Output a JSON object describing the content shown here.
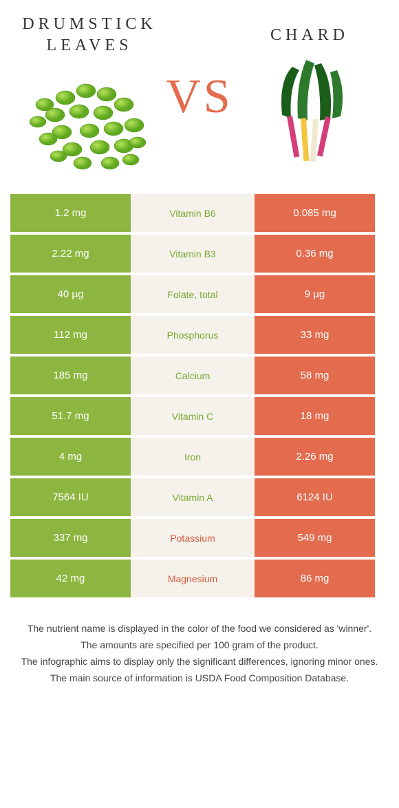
{
  "header": {
    "food1_title": "Drumstick leaves",
    "food2_title": "Chard",
    "vs": "VS"
  },
  "colors": {
    "green": "#8cb63f",
    "orange": "#e36b4e"
  },
  "rows": [
    {
      "left": "1.2 mg",
      "nutrient": "Vitamin B6",
      "right": "0.085 mg",
      "winner": "green"
    },
    {
      "left": "2.22 mg",
      "nutrient": "Vitamin B3",
      "right": "0.36 mg",
      "winner": "green"
    },
    {
      "left": "40 µg",
      "nutrient": "Folate, total",
      "right": "9 µg",
      "winner": "green"
    },
    {
      "left": "112 mg",
      "nutrient": "Phosphorus",
      "right": "33 mg",
      "winner": "green"
    },
    {
      "left": "185 mg",
      "nutrient": "Calcium",
      "right": "58 mg",
      "winner": "green"
    },
    {
      "left": "51.7 mg",
      "nutrient": "Vitamin C",
      "right": "18 mg",
      "winner": "green"
    },
    {
      "left": "4 mg",
      "nutrient": "Iron",
      "right": "2.26 mg",
      "winner": "green"
    },
    {
      "left": "7564 IU",
      "nutrient": "Vitamin A",
      "right": "6124 IU",
      "winner": "green"
    },
    {
      "left": "337 mg",
      "nutrient": "Potassium",
      "right": "549 mg",
      "winner": "orange"
    },
    {
      "left": "42 mg",
      "nutrient": "Magnesium",
      "right": "86 mg",
      "winner": "orange"
    }
  ],
  "notes": {
    "line1": "The nutrient name is displayed in the color of the food we considered as 'winner'.",
    "line2": "The amounts are specified per 100 gram of the product.",
    "line3": "The infographic aims to display only the significant differences, ignoring minor ones.",
    "line4": "The main source of information is USDA Food Composition Database."
  }
}
